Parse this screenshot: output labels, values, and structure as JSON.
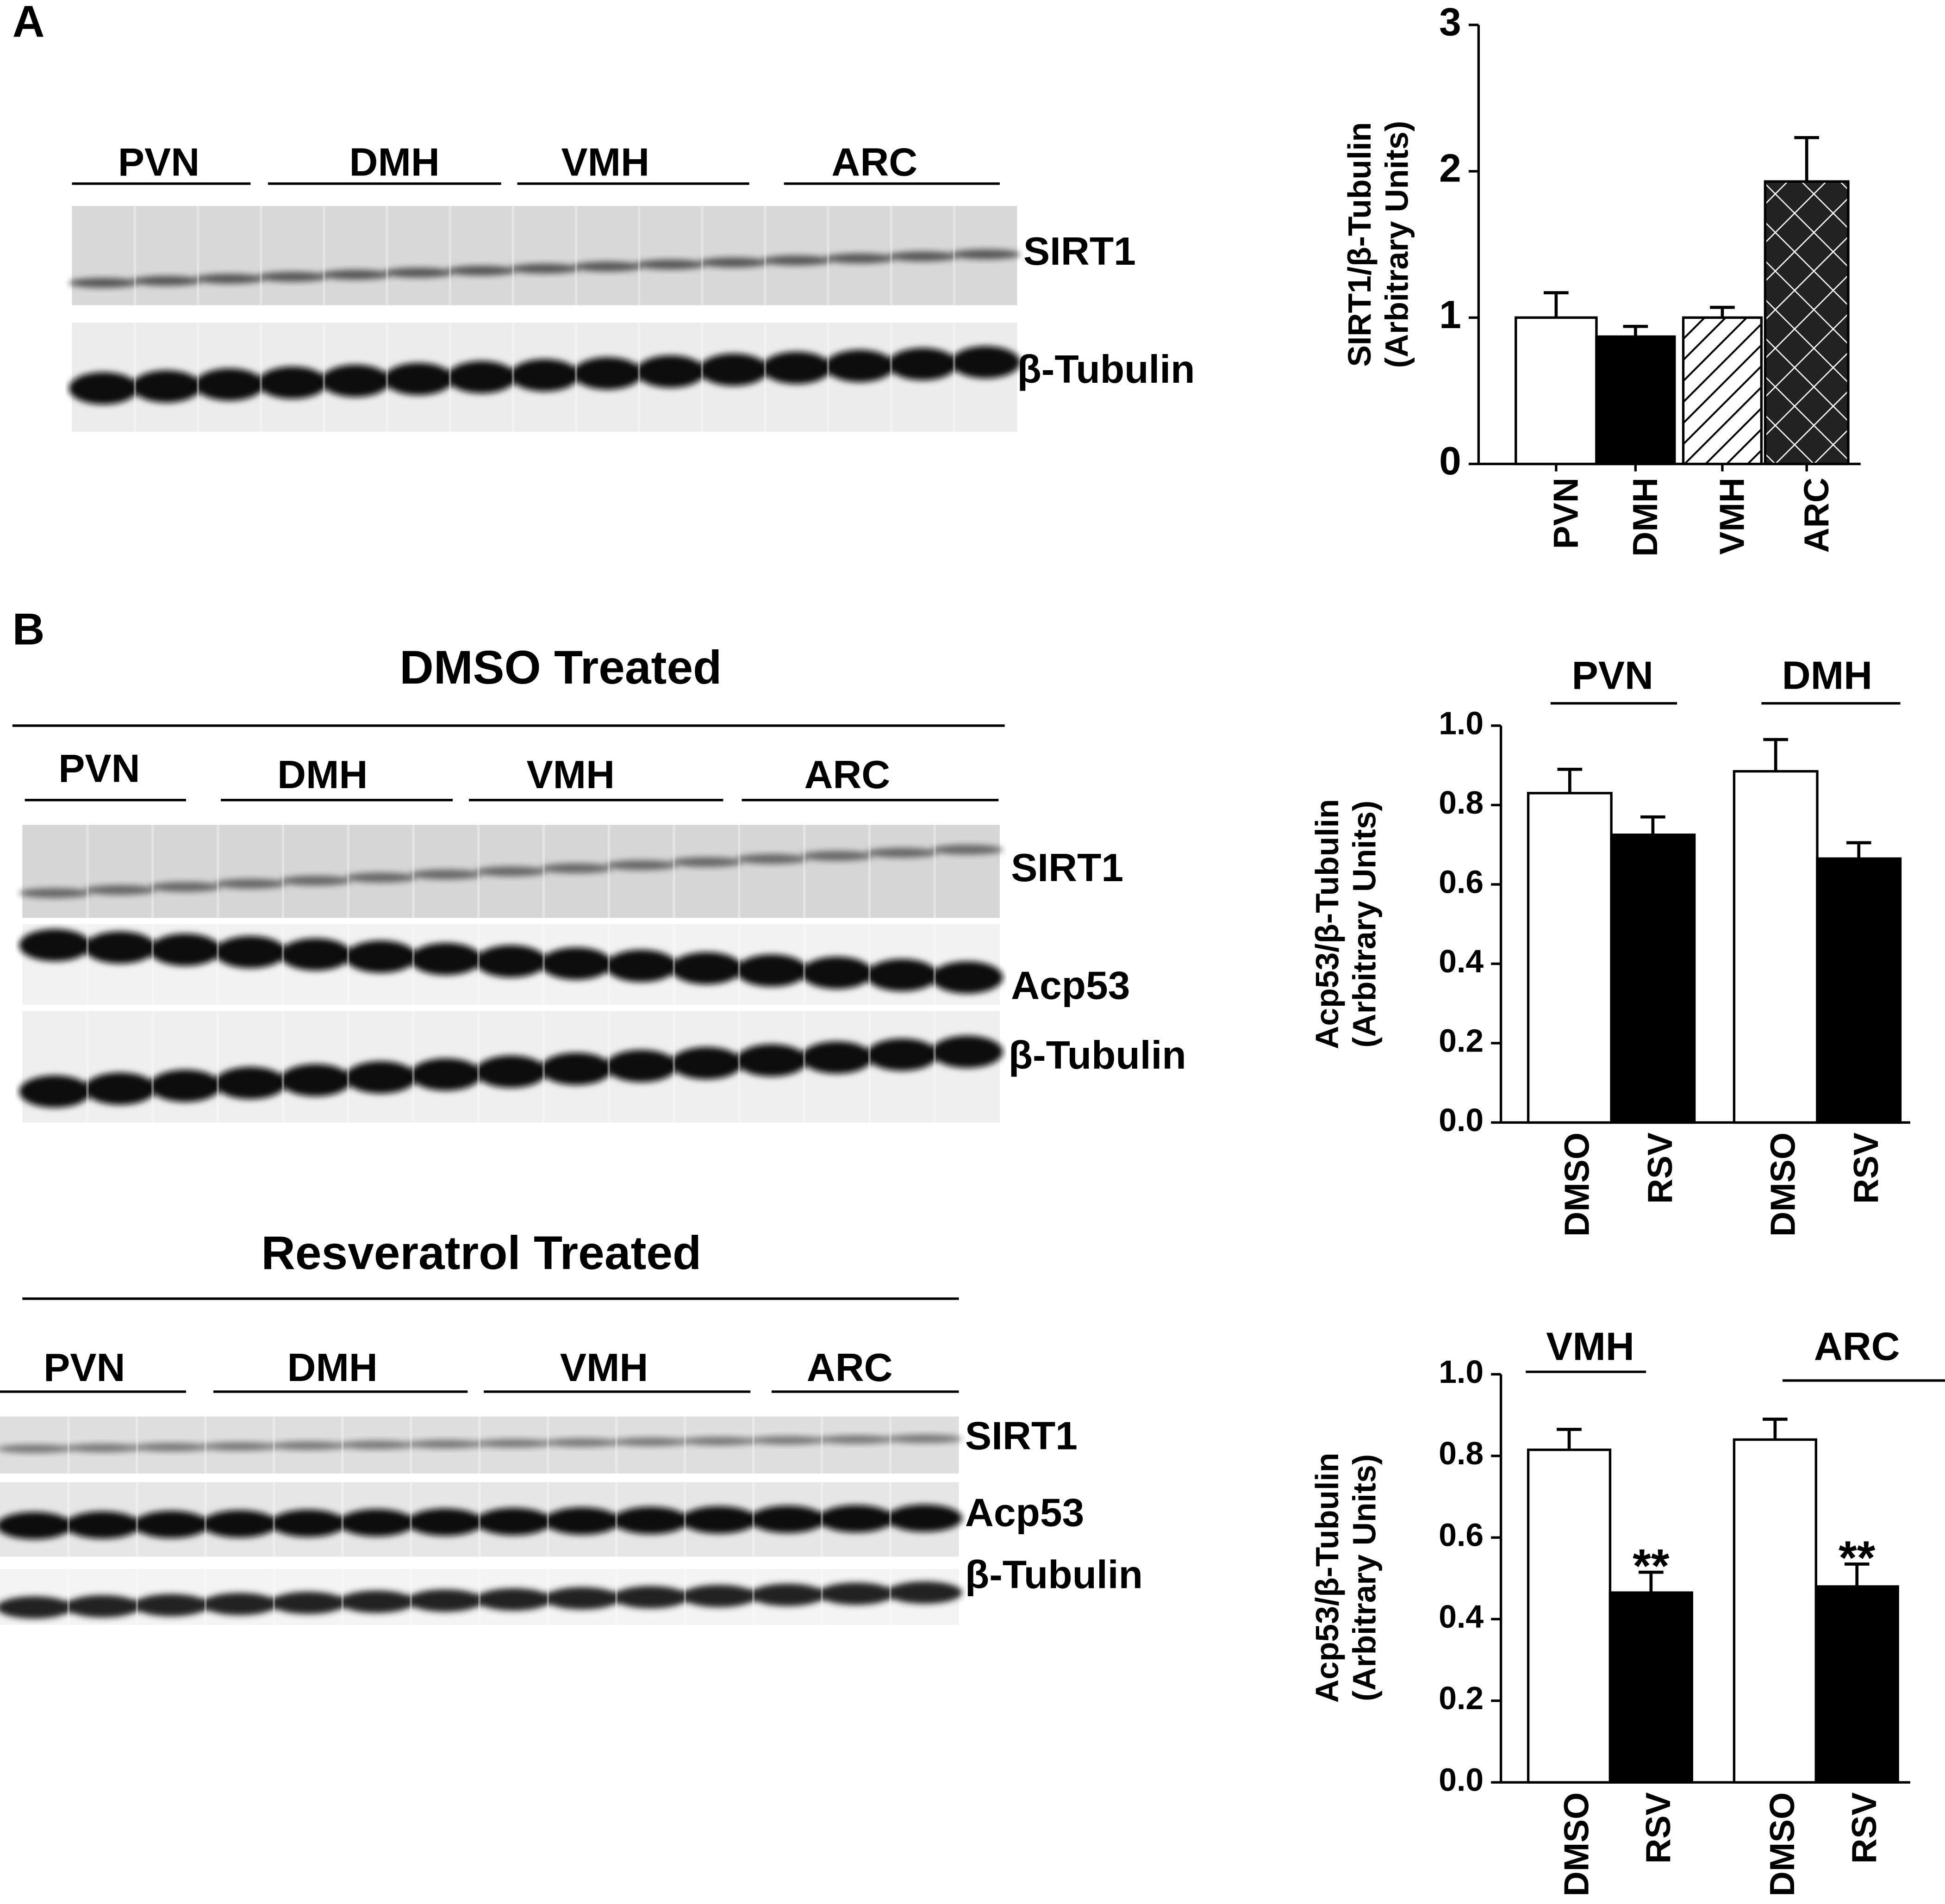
{
  "panel_labels": [
    "A",
    "B"
  ],
  "blot_a": {
    "groups": [
      "PVN",
      "DMH",
      "VMH",
      "ARC"
    ],
    "proteins": [
      "SIRT1",
      "β-Tubulin"
    ]
  },
  "blot_b_dmso": {
    "title": "DMSO Treated",
    "groups": [
      "PVN",
      "DMH",
      "VMH",
      "ARC"
    ],
    "proteins": [
      "SIRT1",
      "Acp53",
      "β-Tubulin"
    ]
  },
  "blot_b_rsv": {
    "title": "Resveratrol Treated",
    "groups": [
      "PVN",
      "DMH",
      "VMH",
      "ARC"
    ],
    "proteins": [
      "SIRT1",
      "Acp53",
      "β-Tubulin"
    ]
  },
  "chart_data": [
    {
      "type": "bar",
      "ylabel": [
        "SIRT1/β-Tubulin",
        "(Arbitrary Units)"
      ],
      "categories": [
        "PVN",
        "DMH",
        "VMH",
        "ARC"
      ],
      "values": [
        1.0,
        0.87,
        1.0,
        1.93
      ],
      "errors": [
        0.17,
        0.07,
        0.07,
        0.3
      ],
      "fills": [
        "#ffffff",
        "#000000",
        "diagonal-hatch",
        "cross-hatch"
      ],
      "ylim": [
        0,
        3
      ],
      "yticks": [
        0,
        1,
        2,
        3
      ]
    },
    {
      "type": "grouped-bar",
      "ylabel": [
        "Acp53/β-Tubulin",
        "(Arbitrary Units)"
      ],
      "categories": [
        "PVN",
        "DMH"
      ],
      "series": [
        {
          "name": "DMSO",
          "color": "#ffffff",
          "values": [
            0.83,
            0.885
          ],
          "errors": [
            0.06,
            0.08
          ]
        },
        {
          "name": "RSV",
          "color": "#000000",
          "values": [
            0.725,
            0.665
          ],
          "errors": [
            0.045,
            0.04
          ]
        }
      ],
      "ylim": [
        0,
        1
      ],
      "yticks": [
        {
          "value": 0,
          "label": "0.0"
        },
        0.2,
        0.4,
        0.6,
        0.8,
        {
          "value": 1,
          "label": "1.0"
        }
      ]
    },
    {
      "type": "grouped-bar",
      "ylabel": [
        "Acp53/β-Tubulin",
        "(Arbitrary Units)"
      ],
      "categories": [
        "VMH",
        "ARC"
      ],
      "series": [
        {
          "name": "DMSO",
          "color": "#ffffff",
          "values": [
            0.815,
            0.84
          ],
          "errors": [
            0.05,
            0.05
          ]
        },
        {
          "name": "RSV",
          "color": "#000000",
          "values": [
            0.465,
            0.48
          ],
          "errors": [
            0.05,
            0.055
          ],
          "significance": [
            "**",
            "**"
          ]
        }
      ],
      "ylim": [
        0,
        1
      ],
      "yticks": [
        {
          "value": 0,
          "label": "0.0"
        },
        0.2,
        0.4,
        0.6,
        0.8,
        {
          "value": 1,
          "label": "1.0"
        }
      ]
    }
  ]
}
